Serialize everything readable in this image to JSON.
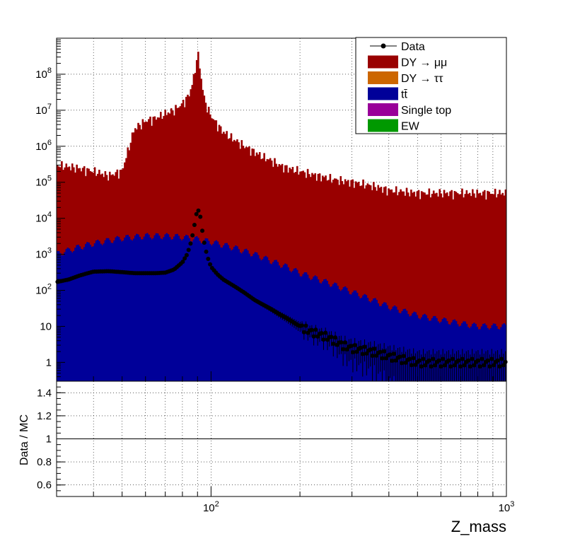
{
  "chart_data": [
    {
      "type": "bar",
      "panel": "main",
      "stacked": true,
      "xscale": "log",
      "yscale": "log",
      "xlim": [
        30,
        1000
      ],
      "ylim": [
        0.3,
        1000000000
      ],
      "grid": true,
      "xlabel": "Z_mass",
      "ylabel": "",
      "y_ticks": [
        {
          "value": 1,
          "label": "1"
        },
        {
          "value": 10,
          "label": "10"
        },
        {
          "value": 100,
          "label": "10",
          "exp": "2"
        },
        {
          "value": 1000,
          "label": "10",
          "exp": "3"
        },
        {
          "value": 10000,
          "label": "10",
          "exp": "4"
        },
        {
          "value": 100000,
          "label": "10",
          "exp": "5"
        },
        {
          "value": 1000000,
          "label": "10",
          "exp": "6"
        },
        {
          "value": 10000000,
          "label": "10",
          "exp": "7"
        },
        {
          "value": 100000000,
          "label": "10",
          "exp": "8"
        }
      ],
      "legend": {
        "placement": "top-right",
        "entries": [
          {
            "label": "Data",
            "kind": "marker",
            "color": "#000000"
          },
          {
            "label": "DY → μμ",
            "kind": "fill",
            "color": "#990000"
          },
          {
            "label": "DY → ττ",
            "kind": "fill",
            "color": "#cc6600"
          },
          {
            "label": "tt̄",
            "kind": "fill",
            "color": "#000099"
          },
          {
            "label": "Single top",
            "kind": "fill",
            "color": "#990099"
          },
          {
            "label": "EW",
            "kind": "fill",
            "color": "#009900"
          }
        ]
      },
      "series": [
        {
          "name": "DY → μμ",
          "color": "#990000",
          "x": [
            30,
            35,
            40,
            45,
            50,
            55,
            60,
            65,
            70,
            75,
            80,
            84,
            86,
            88,
            89,
            90,
            91,
            92,
            93,
            95,
            98,
            100,
            105,
            110,
            120,
            130,
            140,
            150,
            160,
            170,
            180,
            200,
            230,
            260,
            300,
            350,
            400,
            500,
            600,
            700,
            800,
            1000
          ],
          "values": [
            300000,
            250000,
            200000,
            150000,
            200000,
            3000000,
            5000000,
            6000000,
            8000000,
            10000000,
            15000000,
            25000000,
            45000000,
            100000000,
            200000000,
            380000000,
            280000000,
            120000000,
            60000000,
            20000000,
            10000000,
            7000000,
            4000000,
            2500000,
            1500000,
            1000000,
            700000,
            500000,
            400000,
            300000,
            250000,
            200000,
            150000,
            120000,
            100000,
            80000,
            60000,
            50000,
            50000,
            50000,
            50000,
            50000
          ]
        },
        {
          "name": "tt̄",
          "color": "#000099",
          "x": [
            30,
            35,
            40,
            50,
            60,
            70,
            80,
            90,
            100,
            120,
            140,
            160,
            180,
            200,
            250,
            300,
            350,
            400,
            500,
            600,
            700,
            800,
            1000
          ],
          "values": [
            1000,
            1500,
            2000,
            2800,
            3200,
            3200,
            3000,
            2600,
            2200,
            1500,
            1000,
            650,
            450,
            300,
            160,
            90,
            55,
            35,
            20,
            15,
            12,
            10,
            10
          ]
        }
      ],
      "data_points": {
        "name": "Data",
        "x": [
          30,
          33,
          36,
          40,
          45,
          50,
          55,
          60,
          65,
          70,
          75,
          80,
          83,
          85,
          87,
          88,
          89,
          90,
          91,
          92,
          93,
          94,
          96,
          98,
          100,
          105,
          110,
          120,
          130,
          140,
          150,
          160,
          170,
          180,
          200,
          220,
          250,
          280,
          300,
          350,
          400,
          450,
          500,
          600,
          700,
          800,
          900,
          1000
        ],
        "values": [
          170,
          200,
          260,
          330,
          340,
          320,
          300,
          300,
          300,
          310,
          380,
          600,
          1000,
          1800,
          4000,
          7000,
          12000,
          17000,
          16000,
          11000,
          6000,
          3000,
          1300,
          700,
          450,
          280,
          200,
          130,
          85,
          55,
          40,
          30,
          22,
          17,
          10,
          7,
          5,
          3,
          2.5,
          2,
          1.5,
          1.2,
          1,
          1,
          1,
          1,
          1,
          1
        ]
      }
    },
    {
      "type": "line",
      "panel": "ratio",
      "xscale": "log",
      "xlim": [
        30,
        1000
      ],
      "ylim": [
        0.5,
        1.5
      ],
      "ylabel": "Data / MC",
      "grid": true,
      "reference_line": 1,
      "y_ticks": [
        {
          "value": 0.6,
          "label": "0.6"
        },
        {
          "value": 0.8,
          "label": "0.8"
        },
        {
          "value": 1.0,
          "label": "1"
        },
        {
          "value": 1.2,
          "label": "1.2"
        },
        {
          "value": 1.4,
          "label": "1.4"
        }
      ],
      "x_ticks": [
        {
          "value": 100,
          "label": "10",
          "exp": "2"
        },
        {
          "value": 1000,
          "label": "10",
          "exp": "3"
        }
      ]
    }
  ]
}
